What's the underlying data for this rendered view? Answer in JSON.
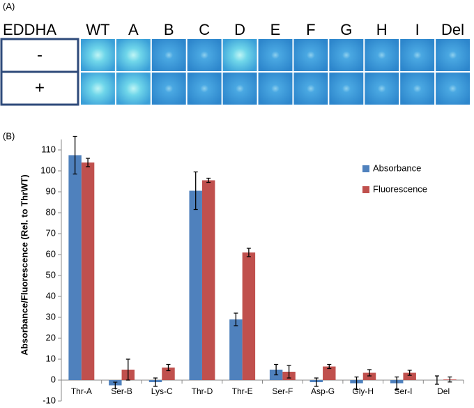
{
  "panel_a": {
    "label": "(A)",
    "corner_header": "EDDHA",
    "columns": [
      "WT",
      "A",
      "B",
      "C",
      "D",
      "E",
      "F",
      "G",
      "H",
      "I",
      "Del"
    ],
    "rows": [
      "-",
      "+"
    ]
  },
  "chart_data": {
    "type": "bar",
    "label": "(B)",
    "y_label": "Absorbance/Fluorescence (Rel. to ThrWT)",
    "categories": [
      "Thr-A",
      "Ser-B",
      "Lys-C",
      "Thr-D",
      "Thr-E",
      "Ser-F",
      "Asp-G",
      "Gly-H",
      "Ser-I",
      "Del"
    ],
    "series": [
      {
        "name": "Absorbance",
        "color": "#4f81bd",
        "values": [
          107.5,
          -2.5,
          -1,
          90.5,
          29,
          5,
          -1,
          -1.5,
          -1.5,
          0
        ],
        "errors": [
          9,
          1.5,
          2,
          9,
          3,
          2.5,
          2,
          3,
          3,
          2
        ]
      },
      {
        "name": "Fluorescence",
        "color": "#c0504d",
        "values": [
          104,
          5,
          6,
          95.5,
          61,
          4,
          6.5,
          3.5,
          3.5,
          0.3
        ],
        "errors": [
          2,
          5,
          1.5,
          1,
          2,
          3,
          1,
          1.5,
          1.2,
          1.2
        ]
      }
    ],
    "ylim": [
      -10,
      115
    ],
    "yticks": [
      -10,
      0,
      10,
      20,
      30,
      40,
      50,
      60,
      70,
      80,
      90,
      100,
      110
    ],
    "legend": "upper right"
  }
}
